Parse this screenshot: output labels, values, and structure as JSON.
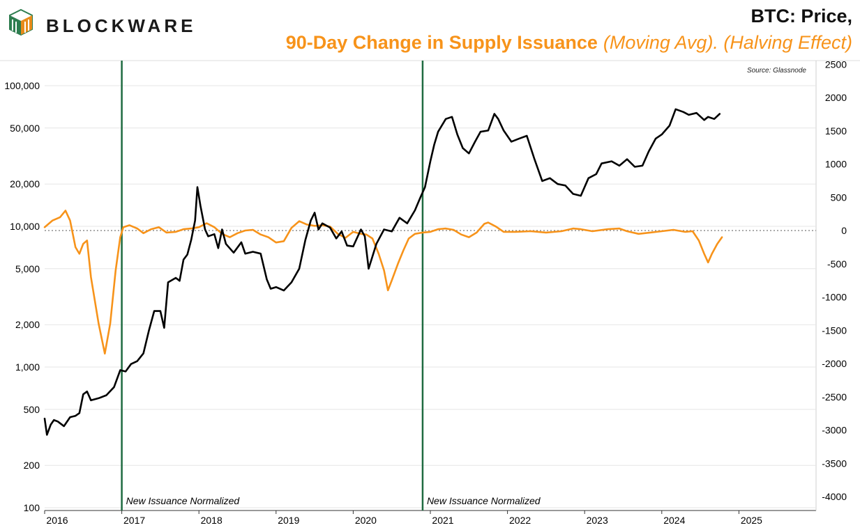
{
  "brand": {
    "name": "BLOCKWARE",
    "logo_icon": "blockware-cube-logo",
    "logo_colors": [
      "#2e7d4f",
      "#e88b1a"
    ]
  },
  "title": {
    "line1": "BTC: Price,",
    "line2_main": "90-Day Change in Supply Issuance",
    "line2_italic": "(Moving Avg). (Halving Effect)"
  },
  "source": "Source: Glassnode",
  "annotations": [
    {
      "text": "New Issuance Normalized",
      "date": 2017.0
    },
    {
      "text": "New Issuance Normalized",
      "date": 2020.9
    }
  ],
  "colors": {
    "price": "#000000",
    "issuance": "#f7931a",
    "vline": "#1e6b40",
    "zero_line": "#777777",
    "grid": "#e5e5e5"
  },
  "chart_data": {
    "type": "line",
    "x_axis": {
      "range": [
        2016.0,
        2026.0
      ],
      "ticks": [
        2016,
        2017,
        2018,
        2019,
        2020,
        2021,
        2022,
        2023,
        2024,
        2025
      ],
      "tick_labels": [
        "2016",
        "2017",
        "2018",
        "2019",
        "2020",
        "2021",
        "2022",
        "2023",
        "2024",
        "2025"
      ]
    },
    "y_left": {
      "scale": "log",
      "range": [
        100,
        150000
      ],
      "ticks": [
        100,
        200,
        500,
        1000,
        2000,
        5000,
        10000,
        20000,
        50000,
        100000
      ],
      "tick_labels": [
        "100",
        "200",
        "500",
        "1,000",
        "2,000",
        "5,000",
        "10,000",
        "20,000",
        "50,000",
        "100,000"
      ]
    },
    "y_right": {
      "scale": "linear",
      "range": [
        -4000,
        2500
      ],
      "ticks": [
        2500,
        2000,
        1500,
        1000,
        500,
        0,
        -500,
        -1000,
        -1500,
        -2000,
        -2500,
        -3000,
        -3500,
        -4000
      ],
      "tick_labels": [
        "2500",
        "2000",
        "1500",
        "1000",
        "500",
        "0",
        "-500",
        "-1000",
        "-1500",
        "-2000",
        "-2500",
        "-3000",
        "-3500",
        "-4000"
      ]
    },
    "vertical_lines": [
      2017.0,
      2020.9
    ],
    "grid": true,
    "series": [
      {
        "axis": "left",
        "points": [
          [
            2016.0,
            430
          ],
          [
            2016.03,
            330
          ],
          [
            2016.08,
            390
          ],
          [
            2016.12,
            420
          ],
          [
            2016.17,
            410
          ],
          [
            2016.25,
            380
          ],
          [
            2016.33,
            440
          ],
          [
            2016.4,
            450
          ],
          [
            2016.45,
            470
          ],
          [
            2016.5,
            640
          ],
          [
            2016.55,
            670
          ],
          [
            2016.6,
            580
          ],
          [
            2016.7,
            600
          ],
          [
            2016.8,
            630
          ],
          [
            2016.9,
            720
          ],
          [
            2016.98,
            950
          ],
          [
            2017.05,
            930
          ],
          [
            2017.12,
            1050
          ],
          [
            2017.2,
            1100
          ],
          [
            2017.28,
            1250
          ],
          [
            2017.35,
            1800
          ],
          [
            2017.42,
            2500
          ],
          [
            2017.5,
            2500
          ],
          [
            2017.55,
            1900
          ],
          [
            2017.6,
            4000
          ],
          [
            2017.7,
            4300
          ],
          [
            2017.75,
            4100
          ],
          [
            2017.8,
            5800
          ],
          [
            2017.85,
            6300
          ],
          [
            2017.9,
            8000
          ],
          [
            2017.95,
            11000
          ],
          [
            2017.98,
            19000
          ],
          [
            2018.02,
            14000
          ],
          [
            2018.08,
            9500
          ],
          [
            2018.12,
            8500
          ],
          [
            2018.2,
            8800
          ],
          [
            2018.25,
            7000
          ],
          [
            2018.3,
            9500
          ],
          [
            2018.35,
            7500
          ],
          [
            2018.45,
            6500
          ],
          [
            2018.55,
            7700
          ],
          [
            2018.6,
            6400
          ],
          [
            2018.7,
            6600
          ],
          [
            2018.8,
            6400
          ],
          [
            2018.88,
            4200
          ],
          [
            2018.93,
            3600
          ],
          [
            2019.0,
            3700
          ],
          [
            2019.1,
            3500
          ],
          [
            2019.2,
            4000
          ],
          [
            2019.3,
            5000
          ],
          [
            2019.38,
            8000
          ],
          [
            2019.45,
            11000
          ],
          [
            2019.5,
            12500
          ],
          [
            2019.55,
            9500
          ],
          [
            2019.6,
            10500
          ],
          [
            2019.7,
            9800
          ],
          [
            2019.78,
            8200
          ],
          [
            2019.85,
            9200
          ],
          [
            2019.92,
            7300
          ],
          [
            2020.0,
            7200
          ],
          [
            2020.1,
            9500
          ],
          [
            2020.15,
            8500
          ],
          [
            2020.2,
            5000
          ],
          [
            2020.3,
            7500
          ],
          [
            2020.4,
            9500
          ],
          [
            2020.5,
            9200
          ],
          [
            2020.6,
            11500
          ],
          [
            2020.7,
            10500
          ],
          [
            2020.8,
            13000
          ],
          [
            2020.87,
            16000
          ],
          [
            2020.93,
            19000
          ],
          [
            2021.0,
            29000
          ],
          [
            2021.05,
            38000
          ],
          [
            2021.1,
            47000
          ],
          [
            2021.2,
            58000
          ],
          [
            2021.28,
            60000
          ],
          [
            2021.35,
            45000
          ],
          [
            2021.42,
            36000
          ],
          [
            2021.5,
            33000
          ],
          [
            2021.58,
            40000
          ],
          [
            2021.65,
            47000
          ],
          [
            2021.75,
            48000
          ],
          [
            2021.83,
            63000
          ],
          [
            2021.88,
            58000
          ],
          [
            2021.95,
            48000
          ],
          [
            2022.05,
            40000
          ],
          [
            2022.15,
            42000
          ],
          [
            2022.25,
            44000
          ],
          [
            2022.35,
            30000
          ],
          [
            2022.45,
            21000
          ],
          [
            2022.55,
            22000
          ],
          [
            2022.65,
            20000
          ],
          [
            2022.75,
            19500
          ],
          [
            2022.85,
            17000
          ],
          [
            2022.95,
            16500
          ],
          [
            2023.05,
            22000
          ],
          [
            2023.15,
            23500
          ],
          [
            2023.22,
            28000
          ],
          [
            2023.35,
            29000
          ],
          [
            2023.45,
            27000
          ],
          [
            2023.55,
            30000
          ],
          [
            2023.65,
            26500
          ],
          [
            2023.75,
            27000
          ],
          [
            2023.83,
            34000
          ],
          [
            2023.92,
            42000
          ],
          [
            2024.0,
            45000
          ],
          [
            2024.1,
            52000
          ],
          [
            2024.18,
            68000
          ],
          [
            2024.28,
            65000
          ],
          [
            2024.35,
            62000
          ],
          [
            2024.45,
            64000
          ],
          [
            2024.55,
            57000
          ],
          [
            2024.6,
            60000
          ],
          [
            2024.68,
            58000
          ],
          [
            2024.75,
            63000
          ]
        ]
      },
      {
        "axis": "right",
        "points": [
          [
            2016.0,
            50
          ],
          [
            2016.1,
            150
          ],
          [
            2016.2,
            200
          ],
          [
            2016.27,
            300
          ],
          [
            2016.33,
            150
          ],
          [
            2016.4,
            -250
          ],
          [
            2016.45,
            -350
          ],
          [
            2016.5,
            -200
          ],
          [
            2016.55,
            -150
          ],
          [
            2016.6,
            -700
          ],
          [
            2016.7,
            -1400
          ],
          [
            2016.78,
            -1850
          ],
          [
            2016.85,
            -1400
          ],
          [
            2016.92,
            -600
          ],
          [
            2016.98,
            -100
          ],
          [
            2017.02,
            50
          ],
          [
            2017.1,
            80
          ],
          [
            2017.2,
            30
          ],
          [
            2017.28,
            -40
          ],
          [
            2017.38,
            20
          ],
          [
            2017.48,
            50
          ],
          [
            2017.58,
            -30
          ],
          [
            2017.7,
            -20
          ],
          [
            2017.8,
            20
          ],
          [
            2017.9,
            30
          ],
          [
            2018.0,
            50
          ],
          [
            2018.1,
            110
          ],
          [
            2018.2,
            50
          ],
          [
            2018.3,
            -50
          ],
          [
            2018.4,
            -100
          ],
          [
            2018.5,
            -40
          ],
          [
            2018.6,
            0
          ],
          [
            2018.7,
            10
          ],
          [
            2018.8,
            -60
          ],
          [
            2018.9,
            -100
          ],
          [
            2019.0,
            -180
          ],
          [
            2019.1,
            -160
          ],
          [
            2019.2,
            40
          ],
          [
            2019.3,
            140
          ],
          [
            2019.4,
            90
          ],
          [
            2019.5,
            70
          ],
          [
            2019.6,
            80
          ],
          [
            2019.7,
            60
          ],
          [
            2019.8,
            -50
          ],
          [
            2019.9,
            -110
          ],
          [
            2020.0,
            -20
          ],
          [
            2020.1,
            -50
          ],
          [
            2020.17,
            -60
          ],
          [
            2020.25,
            -120
          ],
          [
            2020.33,
            -350
          ],
          [
            2020.4,
            -600
          ],
          [
            2020.45,
            -900
          ],
          [
            2020.5,
            -750
          ],
          [
            2020.58,
            -500
          ],
          [
            2020.65,
            -300
          ],
          [
            2020.72,
            -120
          ],
          [
            2020.8,
            -50
          ],
          [
            2020.9,
            -30
          ],
          [
            2021.0,
            -20
          ],
          [
            2021.1,
            20
          ],
          [
            2021.2,
            30
          ],
          [
            2021.3,
            10
          ],
          [
            2021.4,
            -60
          ],
          [
            2021.5,
            -100
          ],
          [
            2021.6,
            -30
          ],
          [
            2021.7,
            100
          ],
          [
            2021.75,
            120
          ],
          [
            2021.85,
            60
          ],
          [
            2021.95,
            -20
          ],
          [
            2022.1,
            -20
          ],
          [
            2022.3,
            -10
          ],
          [
            2022.5,
            -30
          ],
          [
            2022.7,
            -10
          ],
          [
            2022.85,
            30
          ],
          [
            2022.95,
            20
          ],
          [
            2023.1,
            -10
          ],
          [
            2023.3,
            20
          ],
          [
            2023.45,
            30
          ],
          [
            2023.55,
            -10
          ],
          [
            2023.7,
            -50
          ],
          [
            2023.85,
            -30
          ],
          [
            2024.0,
            -10
          ],
          [
            2024.15,
            10
          ],
          [
            2024.3,
            -20
          ],
          [
            2024.4,
            -10
          ],
          [
            2024.48,
            -150
          ],
          [
            2024.55,
            -350
          ],
          [
            2024.6,
            -480
          ],
          [
            2024.65,
            -350
          ],
          [
            2024.72,
            -200
          ],
          [
            2024.78,
            -100
          ]
        ]
      }
    ]
  }
}
